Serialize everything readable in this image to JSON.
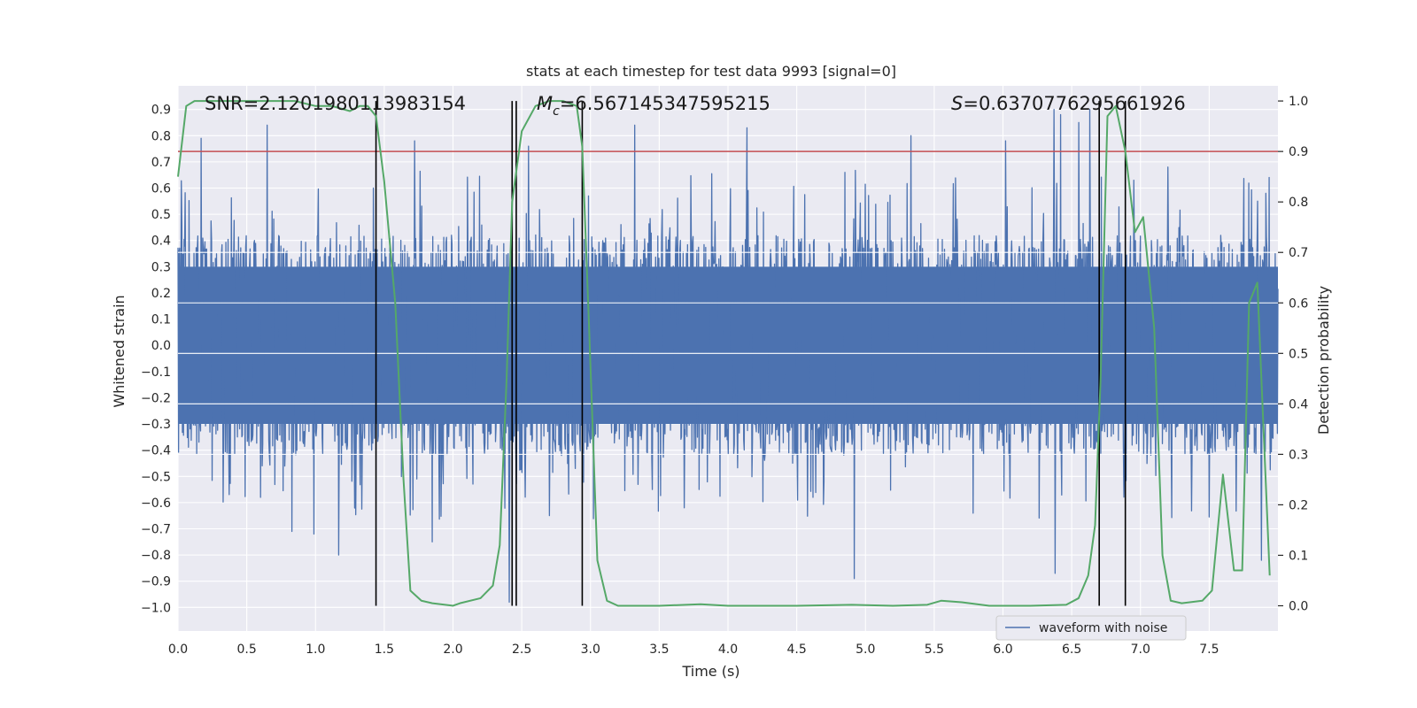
{
  "chart_data": {
    "type": "line",
    "title": "stats at each timestep for test data 9993 [signal=0]",
    "xlabel": "Time (s)",
    "ylabel_left": "Whitened strain",
    "ylabel_right": "Detection probability",
    "xlim": [
      0.0,
      8.0
    ],
    "ylim_left": [
      -1.09,
      0.99
    ],
    "ylim_right": [
      -0.05,
      1.03
    ],
    "x_ticks": [
      "0.0",
      "0.5",
      "1.0",
      "1.5",
      "2.0",
      "2.5",
      "3.0",
      "3.5",
      "4.0",
      "4.5",
      "5.0",
      "5.5",
      "6.0",
      "6.5",
      "7.0",
      "7.5"
    ],
    "y_left_ticks": [
      "0.9",
      "0.8",
      "0.7",
      "0.6",
      "0.5",
      "0.4",
      "0.3",
      "0.2",
      "0.1",
      "0.0",
      "−0.1",
      "−0.2",
      "−0.3",
      "−0.4",
      "−0.5",
      "−0.6",
      "−0.7",
      "−0.8",
      "−0.9",
      "−1.0"
    ],
    "y_right_ticks": [
      "1.0",
      "0.9",
      "0.8",
      "0.7",
      "0.6",
      "0.5",
      "0.4",
      "0.3",
      "0.2",
      "0.1",
      "0.0"
    ],
    "annotations": {
      "snr": "SNR=2.1201980113983154",
      "mc": "=6.567145347595215",
      "mc_symbol": "M",
      "mc_sub": "c",
      "s": "=0.6370776295661926",
      "s_symbol": "S"
    },
    "legend": {
      "label": "waveform with noise",
      "placement": "lower-right"
    },
    "threshold": {
      "value": 0.9,
      "axis": "right",
      "color": "#c44e52"
    },
    "vertical_markers": [
      1.44,
      2.43,
      2.46,
      2.94,
      6.7,
      6.89
    ],
    "waveform": {
      "name": "waveform with noise",
      "color": "#4c72b0",
      "duration_s": 8.0,
      "n_samples": 2000,
      "seed": 9993,
      "core_amplitude": 0.3,
      "peaks": [
        {
          "t": 0.17,
          "v": 0.79
        },
        {
          "t": 0.65,
          "v": 0.84
        },
        {
          "t": 0.6,
          "v": -0.58
        },
        {
          "t": 0.83,
          "v": -0.71
        },
        {
          "t": 0.99,
          "v": -0.72
        },
        {
          "t": 1.17,
          "v": -0.8
        },
        {
          "t": 1.42,
          "v": 0.6
        },
        {
          "t": 1.72,
          "v": 0.78
        },
        {
          "t": 1.85,
          "v": -0.75
        },
        {
          "t": 2.41,
          "v": -0.98
        },
        {
          "t": 2.55,
          "v": 0.76
        },
        {
          "t": 3.32,
          "v": 0.84
        },
        {
          "t": 3.45,
          "v": -0.55
        },
        {
          "t": 4.14,
          "v": 0.83
        },
        {
          "t": 4.62,
          "v": -0.58
        },
        {
          "t": 4.85,
          "v": 0.66
        },
        {
          "t": 4.92,
          "v": -0.89
        },
        {
          "t": 5.33,
          "v": 0.8
        },
        {
          "t": 6.02,
          "v": 0.78
        },
        {
          "t": 6.37,
          "v": 0.9
        },
        {
          "t": 6.38,
          "v": -0.87
        },
        {
          "t": 6.42,
          "v": 0.88
        },
        {
          "t": 6.55,
          "v": 0.85
        },
        {
          "t": 6.63,
          "v": 0.9
        },
        {
          "t": 7.2,
          "v": 0.68
        },
        {
          "t": 7.85,
          "v": 0.55
        },
        {
          "t": 7.88,
          "v": -0.82
        },
        {
          "t": 7.91,
          "v": 0.58
        }
      ]
    },
    "probability_curve": {
      "name": "detection probability",
      "color": "#55a868",
      "points": [
        [
          0.0,
          0.85
        ],
        [
          0.06,
          0.99
        ],
        [
          0.12,
          1.0
        ],
        [
          0.3,
          1.0
        ],
        [
          0.5,
          1.0
        ],
        [
          0.7,
          1.0
        ],
        [
          0.85,
          1.0
        ],
        [
          1.0,
          0.99
        ],
        [
          1.12,
          0.99
        ],
        [
          1.25,
          0.98
        ],
        [
          1.32,
          0.99
        ],
        [
          1.38,
          0.99
        ],
        [
          1.44,
          0.97
        ],
        [
          1.5,
          0.84
        ],
        [
          1.58,
          0.6
        ],
        [
          1.64,
          0.25
        ],
        [
          1.69,
          0.03
        ],
        [
          1.77,
          0.01
        ],
        [
          1.85,
          0.005
        ],
        [
          2.0,
          0.0
        ],
        [
          2.05,
          0.005
        ],
        [
          2.2,
          0.015
        ],
        [
          2.29,
          0.04
        ],
        [
          2.34,
          0.12
        ],
        [
          2.39,
          0.45
        ],
        [
          2.43,
          0.8
        ],
        [
          2.5,
          0.94
        ],
        [
          2.6,
          0.99
        ],
        [
          2.7,
          1.0
        ],
        [
          2.8,
          1.0
        ],
        [
          2.9,
          0.99
        ],
        [
          2.94,
          0.91
        ],
        [
          2.99,
          0.55
        ],
        [
          3.05,
          0.09
        ],
        [
          3.12,
          0.01
        ],
        [
          3.2,
          0.0
        ],
        [
          3.5,
          0.0
        ],
        [
          3.8,
          0.003
        ],
        [
          4.0,
          0.0
        ],
        [
          4.5,
          0.0
        ],
        [
          4.9,
          0.002
        ],
        [
          5.2,
          0.0
        ],
        [
          5.45,
          0.002
        ],
        [
          5.55,
          0.01
        ],
        [
          5.7,
          0.007
        ],
        [
          5.9,
          0.0
        ],
        [
          6.2,
          0.0
        ],
        [
          6.46,
          0.002
        ],
        [
          6.55,
          0.015
        ],
        [
          6.62,
          0.06
        ],
        [
          6.67,
          0.16
        ],
        [
          6.71,
          0.45
        ],
        [
          6.76,
          0.97
        ],
        [
          6.82,
          0.99
        ],
        [
          6.89,
          0.9
        ],
        [
          6.96,
          0.74
        ],
        [
          7.02,
          0.77
        ],
        [
          7.1,
          0.55
        ],
        [
          7.16,
          0.1
        ],
        [
          7.22,
          0.01
        ],
        [
          7.3,
          0.005
        ],
        [
          7.45,
          0.01
        ],
        [
          7.52,
          0.03
        ],
        [
          7.6,
          0.26
        ],
        [
          7.68,
          0.07
        ],
        [
          7.74,
          0.07
        ],
        [
          7.79,
          0.6
        ],
        [
          7.85,
          0.64
        ],
        [
          7.94,
          0.06
        ]
      ]
    }
  }
}
